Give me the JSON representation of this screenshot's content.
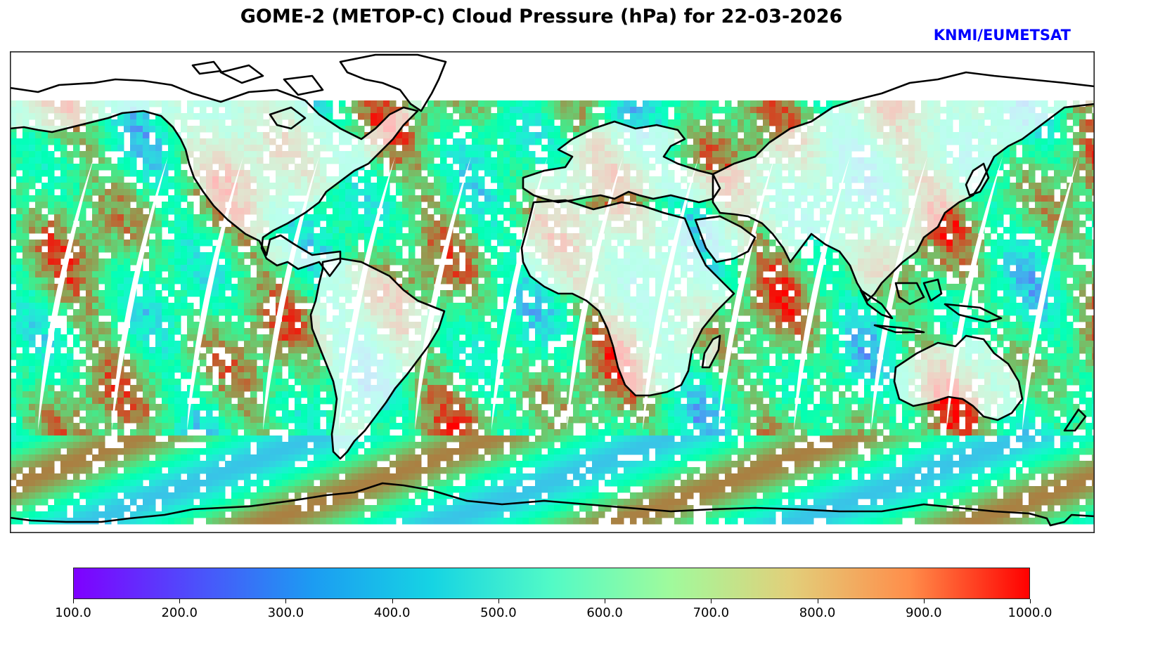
{
  "title": "GOME-2 (METOP-C) Cloud Pressure (hPa) for 22-03-2026",
  "credit": {
    "text": "KNMI/EUMETSAT",
    "color": "#0000ff"
  },
  "map": {
    "projection": "plate-carree",
    "variable": "cloud pressure",
    "coastline_color": "#000000",
    "missing_color": "#ffffff"
  },
  "chart_data": {
    "type": "heatmap",
    "title": "GOME-2 (METOP-C) Cloud Pressure (hPa) for 22-03-2026",
    "colormap": "rainbow",
    "vmin": 100.0,
    "vmax": 1000.0,
    "colorbar": {
      "orientation": "horizontal",
      "placement": "bottom",
      "ticks": [
        100.0,
        200.0,
        300.0,
        400.0,
        500.0,
        600.0,
        700.0,
        800.0,
        900.0,
        1000.0
      ],
      "tick_labels": [
        "100.0",
        "200.0",
        "300.0",
        "400.0",
        "500.0",
        "600.0",
        "700.0",
        "800.0",
        "900.0",
        "1000.0"
      ]
    },
    "xlim": [
      -180,
      180
    ],
    "ylim": [
      -90,
      90
    ],
    "swath_gap_count": 14
  }
}
